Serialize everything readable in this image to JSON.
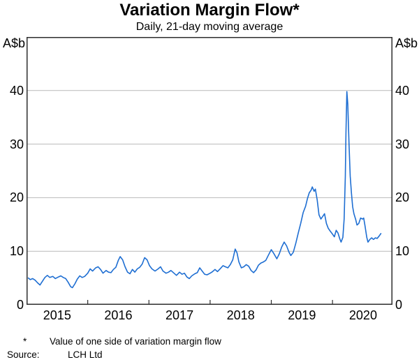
{
  "header": {
    "title": "Variation Margin Flow*",
    "subtitle": "Daily, 21-day moving average"
  },
  "axes": {
    "y_unit": "A$b"
  },
  "footnotes": [
    {
      "marker": "*",
      "text": "Value of one side of variation margin flow"
    }
  ],
  "source": {
    "label": "Source:",
    "text": "LCH Ltd"
  },
  "colors": {
    "line": "#1e6ed2",
    "grid": "#b9b9b9",
    "axis": "#2e2e2e",
    "text": "#000000"
  },
  "chart_data": {
    "type": "line",
    "title": "Variation Margin Flow*",
    "subtitle": "Daily, 21-day moving average",
    "xlabel": "",
    "ylabel": "A$b",
    "ylim": [
      0,
      50
    ],
    "xlim": [
      2015.0,
      2020.98
    ],
    "grid": true,
    "y_ticks": [
      0,
      10,
      20,
      30,
      40
    ],
    "x_year_boundary_ticks": [
      2016,
      2017,
      2018,
      2019,
      2020
    ],
    "x_year_labels": [
      "2015",
      "2016",
      "2017",
      "2018",
      "2019",
      "2020"
    ],
    "legend_position": "none",
    "series": [
      {
        "name": "Variation margin flow (21-day moving average, A$b)",
        "color": "#1e6ed2",
        "points": [
          [
            2015.03,
            5.0
          ],
          [
            2015.06,
            4.7
          ],
          [
            2015.1,
            4.9
          ],
          [
            2015.14,
            4.6
          ],
          [
            2015.18,
            4.1
          ],
          [
            2015.22,
            3.7
          ],
          [
            2015.26,
            4.4
          ],
          [
            2015.3,
            5.1
          ],
          [
            2015.34,
            5.5
          ],
          [
            2015.38,
            5.1
          ],
          [
            2015.43,
            5.3
          ],
          [
            2015.47,
            4.9
          ],
          [
            2015.52,
            5.2
          ],
          [
            2015.56,
            5.4
          ],
          [
            2015.6,
            5.1
          ],
          [
            2015.64,
            4.9
          ],
          [
            2015.68,
            4.2
          ],
          [
            2015.72,
            3.4
          ],
          [
            2015.75,
            3.2
          ],
          [
            2015.79,
            3.9
          ],
          [
            2015.83,
            4.8
          ],
          [
            2015.87,
            5.4
          ],
          [
            2015.91,
            5.1
          ],
          [
            2015.95,
            5.3
          ],
          [
            2016.0,
            5.9
          ],
          [
            2016.04,
            6.7
          ],
          [
            2016.08,
            6.3
          ],
          [
            2016.13,
            6.9
          ],
          [
            2016.17,
            7.1
          ],
          [
            2016.21,
            6.6
          ],
          [
            2016.25,
            5.9
          ],
          [
            2016.3,
            6.4
          ],
          [
            2016.34,
            6.1
          ],
          [
            2016.38,
            6.0
          ],
          [
            2016.42,
            6.6
          ],
          [
            2016.46,
            7.0
          ],
          [
            2016.5,
            8.3
          ],
          [
            2016.53,
            9.0
          ],
          [
            2016.57,
            8.4
          ],
          [
            2016.61,
            7.1
          ],
          [
            2016.65,
            6.1
          ],
          [
            2016.69,
            5.8
          ],
          [
            2016.73,
            6.6
          ],
          [
            2016.77,
            6.1
          ],
          [
            2016.81,
            6.7
          ],
          [
            2016.85,
            7.0
          ],
          [
            2016.89,
            7.6
          ],
          [
            2016.93,
            8.8
          ],
          [
            2016.97,
            8.4
          ],
          [
            2017.01,
            7.3
          ],
          [
            2017.05,
            6.7
          ],
          [
            2017.1,
            6.3
          ],
          [
            2017.15,
            6.7
          ],
          [
            2017.19,
            7.1
          ],
          [
            2017.23,
            6.3
          ],
          [
            2017.28,
            5.9
          ],
          [
            2017.32,
            6.1
          ],
          [
            2017.36,
            6.4
          ],
          [
            2017.41,
            5.9
          ],
          [
            2017.45,
            5.5
          ],
          [
            2017.5,
            6.1
          ],
          [
            2017.54,
            5.7
          ],
          [
            2017.58,
            5.9
          ],
          [
            2017.62,
            5.2
          ],
          [
            2017.66,
            4.9
          ],
          [
            2017.7,
            5.4
          ],
          [
            2017.75,
            5.8
          ],
          [
            2017.79,
            6.0
          ],
          [
            2017.83,
            6.9
          ],
          [
            2017.87,
            6.3
          ],
          [
            2017.91,
            5.7
          ],
          [
            2017.95,
            5.6
          ],
          [
            2018.0,
            5.9
          ],
          [
            2018.04,
            6.2
          ],
          [
            2018.08,
            6.6
          ],
          [
            2018.12,
            6.2
          ],
          [
            2018.17,
            6.8
          ],
          [
            2018.21,
            7.3
          ],
          [
            2018.25,
            7.1
          ],
          [
            2018.29,
            6.9
          ],
          [
            2018.33,
            7.5
          ],
          [
            2018.37,
            8.4
          ],
          [
            2018.41,
            10.4
          ],
          [
            2018.44,
            9.7
          ],
          [
            2018.47,
            8.0
          ],
          [
            2018.51,
            6.9
          ],
          [
            2018.55,
            7.1
          ],
          [
            2018.59,
            7.5
          ],
          [
            2018.63,
            7.2
          ],
          [
            2018.67,
            6.4
          ],
          [
            2018.71,
            6.0
          ],
          [
            2018.75,
            6.5
          ],
          [
            2018.79,
            7.4
          ],
          [
            2018.83,
            7.8
          ],
          [
            2018.87,
            8.0
          ],
          [
            2018.91,
            8.3
          ],
          [
            2018.95,
            9.2
          ],
          [
            2019.0,
            10.3
          ],
          [
            2019.04,
            9.6
          ],
          [
            2019.09,
            8.6
          ],
          [
            2019.13,
            9.5
          ],
          [
            2019.17,
            10.8
          ],
          [
            2019.21,
            11.7
          ],
          [
            2019.25,
            11.0
          ],
          [
            2019.29,
            9.8
          ],
          [
            2019.32,
            9.2
          ],
          [
            2019.36,
            9.8
          ],
          [
            2019.4,
            11.5
          ],
          [
            2019.44,
            13.4
          ],
          [
            2019.48,
            15.2
          ],
          [
            2019.52,
            17.2
          ],
          [
            2019.56,
            18.4
          ],
          [
            2019.59,
            19.8
          ],
          [
            2019.62,
            20.9
          ],
          [
            2019.65,
            21.4
          ],
          [
            2019.67,
            22.0
          ],
          [
            2019.7,
            21.2
          ],
          [
            2019.72,
            21.6
          ],
          [
            2019.75,
            19.6
          ],
          [
            2019.78,
            16.8
          ],
          [
            2019.81,
            16.0
          ],
          [
            2019.84,
            16.5
          ],
          [
            2019.87,
            17.0
          ],
          [
            2019.9,
            15.2
          ],
          [
            2019.93,
            14.3
          ],
          [
            2019.96,
            13.8
          ],
          [
            2020.0,
            13.2
          ],
          [
            2020.03,
            12.7
          ],
          [
            2020.06,
            13.9
          ],
          [
            2020.09,
            13.4
          ],
          [
            2020.12,
            12.3
          ],
          [
            2020.14,
            11.7
          ],
          [
            2020.17,
            12.6
          ],
          [
            2020.19,
            16.0
          ],
          [
            2020.21,
            24.0
          ],
          [
            2020.22,
            32.0
          ],
          [
            2020.235,
            39.8
          ],
          [
            2020.25,
            37.5
          ],
          [
            2020.27,
            30.0
          ],
          [
            2020.29,
            24.0
          ],
          [
            2020.31,
            20.8
          ],
          [
            2020.33,
            18.3
          ],
          [
            2020.35,
            17.0
          ],
          [
            2020.38,
            15.9
          ],
          [
            2020.4,
            14.9
          ],
          [
            2020.43,
            15.2
          ],
          [
            2020.46,
            16.2
          ],
          [
            2020.49,
            16.0
          ],
          [
            2020.51,
            16.2
          ],
          [
            2020.53,
            14.8
          ],
          [
            2020.56,
            12.6
          ],
          [
            2020.58,
            11.7
          ],
          [
            2020.61,
            12.2
          ],
          [
            2020.64,
            12.5
          ],
          [
            2020.67,
            12.2
          ],
          [
            2020.7,
            12.5
          ],
          [
            2020.73,
            12.4
          ],
          [
            2020.76,
            12.8
          ],
          [
            2020.79,
            13.3
          ]
        ]
      }
    ]
  }
}
